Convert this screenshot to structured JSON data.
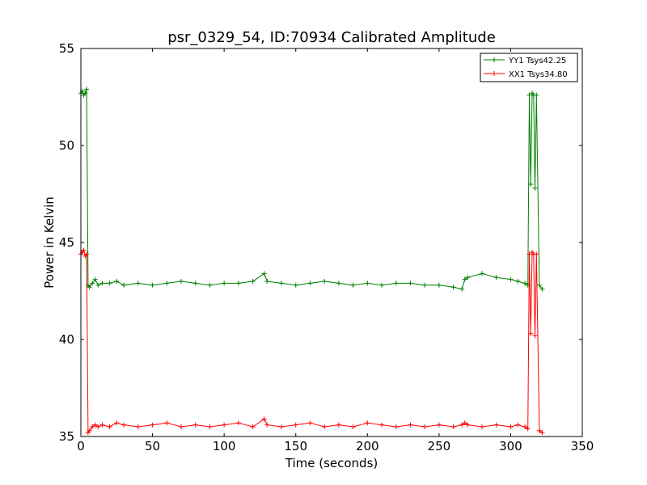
{
  "chart_data": {
    "type": "line",
    "title": "psr_0329_54, ID:70934 Calibrated Amplitude",
    "xlabel": "Time (seconds)",
    "ylabel": "Power in Kelvin",
    "xlim": [
      0,
      350
    ],
    "ylim": [
      35,
      55
    ],
    "xticks": [
      "0",
      "50",
      "100",
      "150",
      "200",
      "250",
      "300",
      "350"
    ],
    "yticks": [
      "35",
      "40",
      "45",
      "50",
      "55"
    ],
    "grid": false,
    "legend_position": "top-right",
    "colors": {
      "YY1": "#008000",
      "XX1": "#ff0000"
    },
    "series": [
      {
        "name": "YY1 Tsys42.25",
        "color": "#008000",
        "marker": "plus",
        "x": [
          0,
          1,
          2,
          3,
          4,
          5,
          6,
          8,
          10,
          12,
          15,
          20,
          25,
          30,
          40,
          50,
          60,
          70,
          80,
          90,
          100,
          110,
          120,
          128,
          130,
          140,
          150,
          160,
          170,
          180,
          190,
          200,
          210,
          220,
          230,
          240,
          250,
          260,
          266,
          268,
          270,
          280,
          290,
          300,
          305,
          310,
          312,
          313,
          314,
          315,
          316,
          317,
          318,
          320,
          322
        ],
        "y": [
          52.7,
          52.8,
          52.6,
          52.7,
          52.9,
          42.8,
          42.7,
          42.9,
          43.1,
          42.8,
          42.9,
          42.9,
          43.0,
          42.8,
          42.9,
          42.8,
          42.9,
          43.0,
          42.9,
          42.8,
          42.9,
          42.9,
          43.0,
          43.4,
          43.0,
          42.9,
          42.8,
          42.9,
          43.0,
          42.9,
          42.8,
          42.9,
          42.8,
          42.9,
          42.9,
          42.8,
          42.8,
          42.7,
          42.6,
          43.1,
          43.2,
          43.4,
          43.2,
          43.1,
          43.0,
          42.9,
          42.8,
          52.6,
          48.0,
          52.7,
          52.6,
          47.8,
          52.6,
          42.8,
          42.6
        ]
      },
      {
        "name": "XX1 Tsys34.80",
        "color": "#ff0000",
        "marker": "plus",
        "x": [
          0,
          1,
          2,
          3,
          4,
          5,
          6,
          8,
          10,
          12,
          15,
          20,
          25,
          30,
          40,
          50,
          60,
          70,
          80,
          90,
          100,
          110,
          120,
          128,
          130,
          140,
          150,
          160,
          170,
          180,
          190,
          200,
          210,
          220,
          230,
          240,
          250,
          260,
          266,
          268,
          270,
          280,
          290,
          300,
          305,
          310,
          312,
          313,
          314,
          315,
          316,
          317,
          318,
          320,
          322
        ],
        "y": [
          44.4,
          44.5,
          44.6,
          44.3,
          44.4,
          35.2,
          35.3,
          35.5,
          35.6,
          35.5,
          35.6,
          35.5,
          35.7,
          35.6,
          35.5,
          35.6,
          35.7,
          35.5,
          35.6,
          35.5,
          35.6,
          35.7,
          35.5,
          35.9,
          35.6,
          35.5,
          35.6,
          35.7,
          35.5,
          35.6,
          35.5,
          35.7,
          35.6,
          35.5,
          35.6,
          35.5,
          35.6,
          35.5,
          35.6,
          35.7,
          35.6,
          35.5,
          35.6,
          35.5,
          35.6,
          35.5,
          35.4,
          44.4,
          40.3,
          44.5,
          44.4,
          40.2,
          44.4,
          35.3,
          35.2
        ]
      }
    ]
  }
}
